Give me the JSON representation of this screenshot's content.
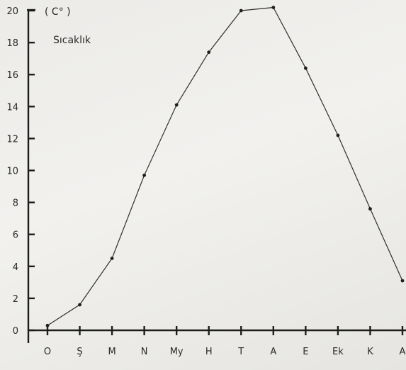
{
  "chart_data": {
    "type": "line",
    "title": "Sıcaklık",
    "y_unit": "( C° )",
    "categories": [
      "O",
      "Ş",
      "M",
      "N",
      "My",
      "H",
      "T",
      "A",
      "E",
      "Ek",
      "K",
      "A"
    ],
    "series": [
      {
        "values": [
          0.3,
          1.6,
          4.5,
          9.7,
          14.1,
          17.4,
          20.0,
          20.2,
          16.4,
          12.2,
          7.6,
          3.1
        ]
      }
    ],
    "y_ticks": [
      "0",
      "2",
      "4",
      "6",
      "8",
      "10",
      "12",
      "14",
      "16",
      "18",
      "20"
    ],
    "ylim": [
      0,
      20
    ],
    "grid": false,
    "legend": "none",
    "line_color": "#2f2f2f"
  }
}
